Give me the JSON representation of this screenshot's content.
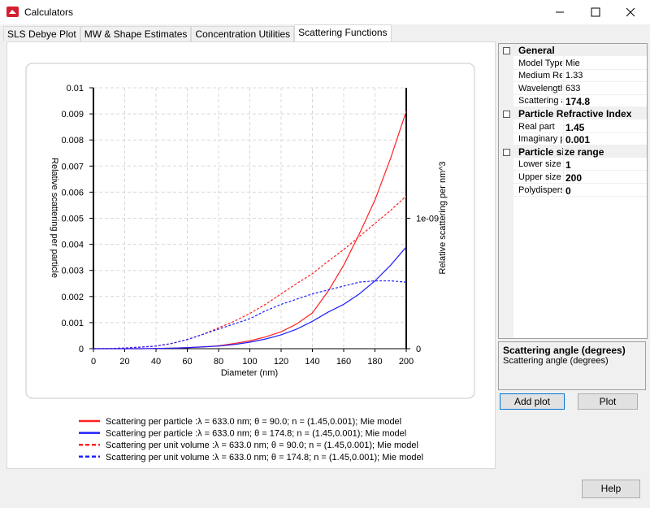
{
  "window": {
    "title": "Calculators"
  },
  "tabs": [
    "SLS Debye Plot",
    "MW & Shape Estimates",
    "Concentration Utilities",
    "Scattering Functions"
  ],
  "chart_data": {
    "type": "line",
    "xlabel": "Diameter (nm)",
    "ylabel": "Relative scattering per particle",
    "y2label": "Relative scattering per nm^3",
    "x": [
      0,
      10,
      20,
      30,
      40,
      50,
      60,
      70,
      80,
      90,
      100,
      110,
      120,
      130,
      140,
      150,
      160,
      170,
      180,
      190,
      200
    ],
    "xlim": [
      0,
      200
    ],
    "xticks": [
      0,
      20,
      40,
      60,
      80,
      100,
      120,
      140,
      160,
      180,
      200
    ],
    "ylim": [
      0,
      0.01
    ],
    "yticks": [
      0,
      0.001,
      0.002,
      0.003,
      0.004,
      0.005,
      0.006,
      0.007,
      0.008,
      0.009,
      0.01
    ],
    "y2lim": [
      0,
      2e-09
    ],
    "y2ticks": [
      0,
      {
        "value": 1e-09,
        "label": "1e-09"
      }
    ],
    "grid": true,
    "series": [
      {
        "name": "Scattering per particle :λ = 633.0 nm; θ = 90.0; n = (1.45,0.001); Mie model",
        "color": "#ff2020",
        "dashed": false,
        "values": [
          0,
          0,
          0,
          0,
          1e-05,
          2e-05,
          4e-05,
          7e-05,
          0.00011,
          0.0002,
          0.0003,
          0.00045,
          0.00065,
          0.00095,
          0.00137,
          0.0022,
          0.0032,
          0.0044,
          0.0057,
          0.0073,
          0.0091
        ]
      },
      {
        "name": "Scattering per particle :λ = 633.0 nm; θ = 174.8; n = (1.45,0.001); Mie model",
        "color": "#2020ff",
        "dashed": false,
        "values": [
          0,
          0,
          0,
          0,
          1e-05,
          2e-05,
          4e-05,
          7e-05,
          0.0001,
          0.00016,
          0.00025,
          0.00037,
          0.00053,
          0.00075,
          0.00105,
          0.0014,
          0.0017,
          0.0021,
          0.0026,
          0.0032,
          0.0039
        ]
      },
      {
        "name": "Scattering per unit volume :λ = 633.0 nm; θ = 90.0; n = (1.45,0.001); Mie model",
        "color": "#ff2020",
        "dashed": true,
        "axis": "y2",
        "values": [
          0,
          1e-12,
          5e-12,
          1.2e-11,
          2e-11,
          4e-11,
          7e-11,
          1.1e-10,
          1.6e-10,
          2.1e-10,
          2.7e-10,
          3.4e-10,
          4.2e-10,
          5e-10,
          5.75e-10,
          6.7e-10,
          7.6e-10,
          8.6e-10,
          9.6e-10,
          1.06e-09,
          1.17e-09
        ]
      },
      {
        "name": "Scattering per unit volume :λ = 633.0 nm; θ = 174.8; n = (1.45,0.001); Mie model",
        "color": "#2020ff",
        "dashed": true,
        "axis": "y2",
        "values": [
          0,
          1e-12,
          5e-12,
          1.2e-11,
          2e-11,
          4e-11,
          7e-11,
          1.1e-10,
          1.5e-10,
          1.9e-10,
          2.3e-10,
          2.9e-10,
          3.4e-10,
          3.8e-10,
          4.2e-10,
          4.5e-10,
          4.8e-10,
          5.1e-10,
          5.2e-10,
          5.2e-10,
          5.1e-10
        ]
      }
    ]
  },
  "properties": [
    {
      "name": "General",
      "rows": [
        {
          "name": "Model Type",
          "value": "Mie",
          "bold": false
        },
        {
          "name": "Medium Re",
          "value": "1.33",
          "bold": false
        },
        {
          "name": "Wavelength",
          "value": "633",
          "bold": false
        },
        {
          "name": "Scattering a",
          "value": "174.8",
          "bold": true
        }
      ]
    },
    {
      "name": "Particle Refractive Index",
      "rows": [
        {
          "name": "Real part",
          "value": "1.45",
          "bold": true
        },
        {
          "name": "Imaginary p",
          "value": "0.001",
          "bold": true
        }
      ]
    },
    {
      "name": "Particle size range",
      "rows": [
        {
          "name": "Lower size",
          "value": "1",
          "bold": true
        },
        {
          "name": "Upper size",
          "value": "200",
          "bold": true
        },
        {
          "name": "Polydispersi",
          "value": "0",
          "bold": true
        }
      ]
    }
  ],
  "description": {
    "title": "Scattering angle (degrees)",
    "text": "Scattering angle (degrees)"
  },
  "buttons": {
    "add_plot": "Add plot",
    "plot": "Plot",
    "help": "Help"
  }
}
